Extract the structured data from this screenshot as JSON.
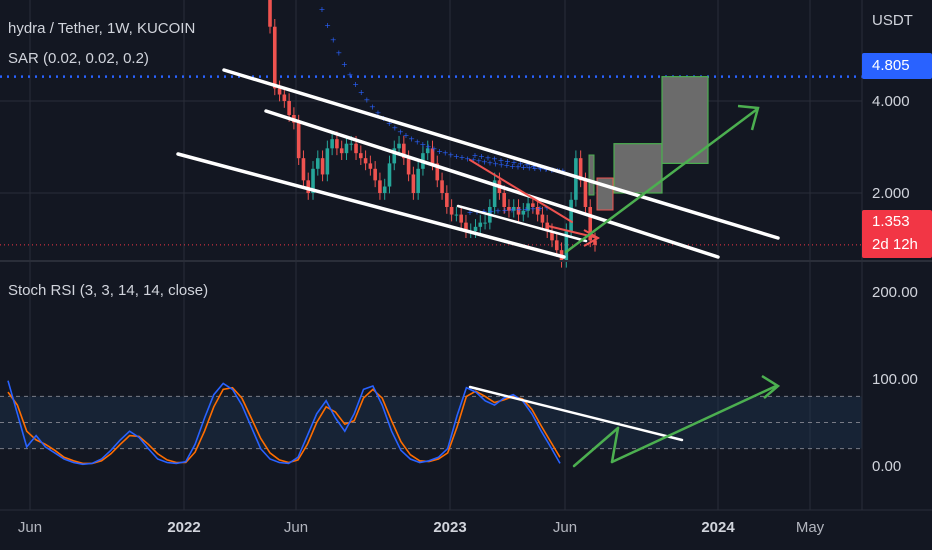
{
  "header": {
    "symbol": "hydra / Tether, 1W, KUCOIN",
    "sar_label": "SAR (0.02, 0.02, 0.2)",
    "stoch_label": "Stoch RSI (3, 3, 14, 14, close)"
  },
  "price_axis": {
    "currency": "USDT",
    "ticks": [
      "4.000",
      "2.000"
    ],
    "last_price": "1.353",
    "countdown": "2d 12h",
    "target_price": "4.805"
  },
  "stoch_axis": {
    "ticks": [
      "200.00",
      "100.00",
      "0.00"
    ]
  },
  "time_axis": {
    "ticks": [
      "Jun",
      "2022",
      "Jun",
      "2023",
      "Jun",
      "2024",
      "May"
    ]
  },
  "colors": {
    "background": "#131722",
    "up": "#26a69a",
    "down": "#ef5350",
    "sar": "#2962ff",
    "k_line": "#2962ff",
    "d_line": "#ff6d00",
    "projection_green": "#4caf50",
    "target_line": "#2962ff",
    "last_price_tag": "#f23645",
    "trendline": "#ffffff",
    "grid": "#2a2e39"
  },
  "chart_data": [
    {
      "type": "candlestick",
      "title": "hydra / Tether, 1W, KUCOIN",
      "scale": "log",
      "y_unit": "USDT",
      "indicators": [
        "SAR (0.02, 0.02, 0.2)"
      ],
      "x_ticks": [
        "Jun",
        "2022",
        "Jun",
        "2023",
        "Jun",
        "2024",
        "May"
      ],
      "y_ticks": [
        4.0,
        2.0
      ],
      "last_price": 1.353,
      "target_price": 4.805,
      "candle_closes_approx": [
        7.0,
        4.4,
        4.2,
        4.0,
        3.6,
        3.4,
        2.6,
        2.2,
        2.0,
        2.4,
        2.6,
        2.3,
        2.8,
        3.0,
        2.8,
        2.7,
        2.9,
        2.9,
        2.7,
        2.6,
        2.5,
        2.4,
        2.2,
        2.0,
        2.1,
        2.5,
        2.8,
        2.9,
        2.6,
        2.3,
        2.0,
        2.4,
        2.7,
        2.8,
        2.5,
        2.2,
        2.0,
        1.8,
        1.7,
        1.7,
        1.6,
        1.5,
        1.5,
        1.55,
        1.6,
        1.6,
        1.8,
        2.2,
        2.0,
        1.8,
        1.75,
        1.8,
        1.7,
        1.75,
        1.85,
        1.8,
        1.7,
        1.6,
        1.5,
        1.4,
        1.3,
        1.2,
        1.5,
        1.9,
        2.6,
        2.2,
        1.8,
        1.4,
        1.353
      ],
      "projection_boxes_approx": [
        {
          "low": 2.0,
          "high": 2.9
        },
        {
          "low": 2.5,
          "high": 4.805
        }
      ]
    },
    {
      "type": "line",
      "title": "Stoch RSI (3, 3, 14, 14, close)",
      "y_ticks": [
        200,
        100,
        0
      ],
      "bands": [
        80,
        50,
        20
      ],
      "series": [
        {
          "name": "K",
          "values": [
            98,
            60,
            22,
            35,
            22,
            15,
            8,
            4,
            2,
            3,
            8,
            18,
            30,
            40,
            33,
            20,
            8,
            4,
            3,
            5,
            25,
            55,
            82,
            95,
            88,
            70,
            45,
            20,
            8,
            4,
            3,
            10,
            35,
            60,
            75,
            55,
            40,
            60,
            88,
            92,
            70,
            40,
            18,
            8,
            4,
            6,
            10,
            20,
            58,
            90,
            85,
            75,
            70,
            78,
            82,
            75,
            60,
            40,
            22,
            3
          ]
        },
        {
          "name": "D",
          "values": [
            85,
            70,
            40,
            30,
            25,
            18,
            10,
            6,
            3,
            3,
            6,
            14,
            25,
            35,
            34,
            25,
            14,
            7,
            4,
            4,
            16,
            40,
            68,
            88,
            90,
            78,
            55,
            32,
            15,
            7,
            4,
            7,
            25,
            50,
            68,
            62,
            48,
            52,
            78,
            88,
            78,
            52,
            28,
            13,
            6,
            5,
            8,
            15,
            45,
            80,
            86,
            80,
            73,
            76,
            80,
            77,
            65,
            46,
            28,
            10
          ]
        }
      ]
    }
  ]
}
